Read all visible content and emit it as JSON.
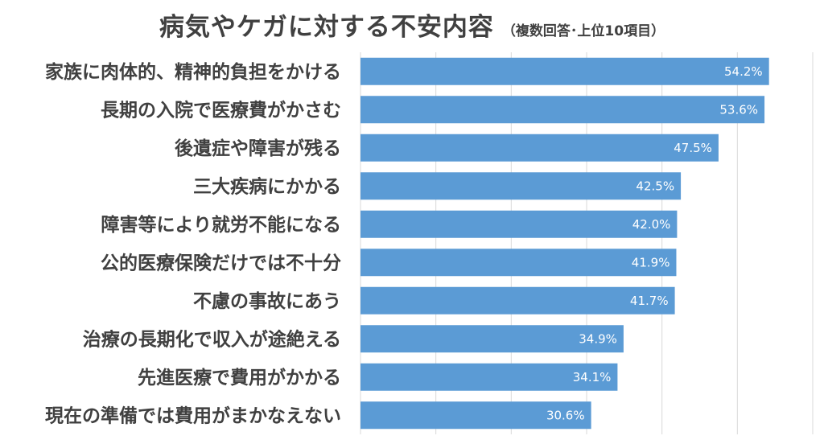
{
  "title": "病気やケガに対する不安内容",
  "subtitle": "（複数回答･上位10項目）",
  "chart_data": {
    "type": "bar",
    "orientation": "horizontal",
    "categories": [
      "家族に肉体的、精神的負担をかける",
      "長期の入院で医療費がかさむ",
      "後遺症や障害が残る",
      "三大疾病にかかる",
      "障害等により就労不能になる",
      "公的医療保険だけでは不十分",
      "不慮の事故にあう",
      "治療の長期化で収入が途絶える",
      "先進医療で費用がかかる",
      "現在の準備では費用がまかなえない"
    ],
    "values": [
      54.2,
      53.6,
      47.5,
      42.5,
      42.0,
      41.9,
      41.7,
      34.9,
      34.1,
      30.6
    ],
    "value_labels": [
      "54.2%",
      "53.6%",
      "47.5%",
      "42.5%",
      "42.0%",
      "41.9%",
      "41.7%",
      "34.9%",
      "34.1%",
      "30.6%"
    ],
    "xlim": [
      0,
      60
    ],
    "grid": true,
    "legend": false,
    "bar_color": "#5b9bd5"
  }
}
